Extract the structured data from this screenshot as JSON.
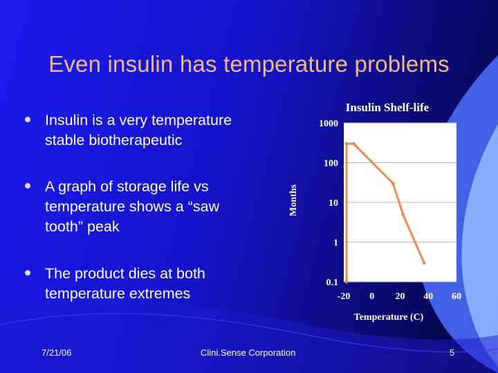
{
  "slide": {
    "title": "Even insulin has temperature problems",
    "bullets": [
      "Insulin is a very temperature\nstable biotherapeutic",
      "A graph of storage life vs\ntemperature shows a “saw\ntooth”  peak",
      "The product dies at both\ntemperature extremes"
    ],
    "footer": {
      "date": "7/21/06",
      "company": "Clini.Sense Corporation",
      "page": "5"
    }
  },
  "chart_data": {
    "type": "line",
    "title": "Insulin Shelf-life",
    "xlabel": "Temperature (C)",
    "ylabel": "Months",
    "x_ticks": [
      "-20",
      "0",
      "20",
      "40",
      "60"
    ],
    "y_ticks": [
      "1000",
      "100",
      "10",
      "1",
      "0.1"
    ],
    "xlim": [
      -20,
      60
    ],
    "ylim": [
      0.1,
      1000
    ],
    "y_scale": "log",
    "grid": "horizontal",
    "series": [
      {
        "color": "#f08a4b",
        "points": [
          [
            -18,
            0.1
          ],
          [
            -18,
            300
          ],
          [
            -13,
            300
          ],
          [
            15,
            30
          ],
          [
            22,
            5
          ],
          [
            37,
            0.3
          ]
        ]
      }
    ],
    "colors": {
      "line": "#f08a4b",
      "plot_bg": "#ffffff",
      "grid": "#bbbbbb",
      "text": "#ffffff"
    }
  }
}
